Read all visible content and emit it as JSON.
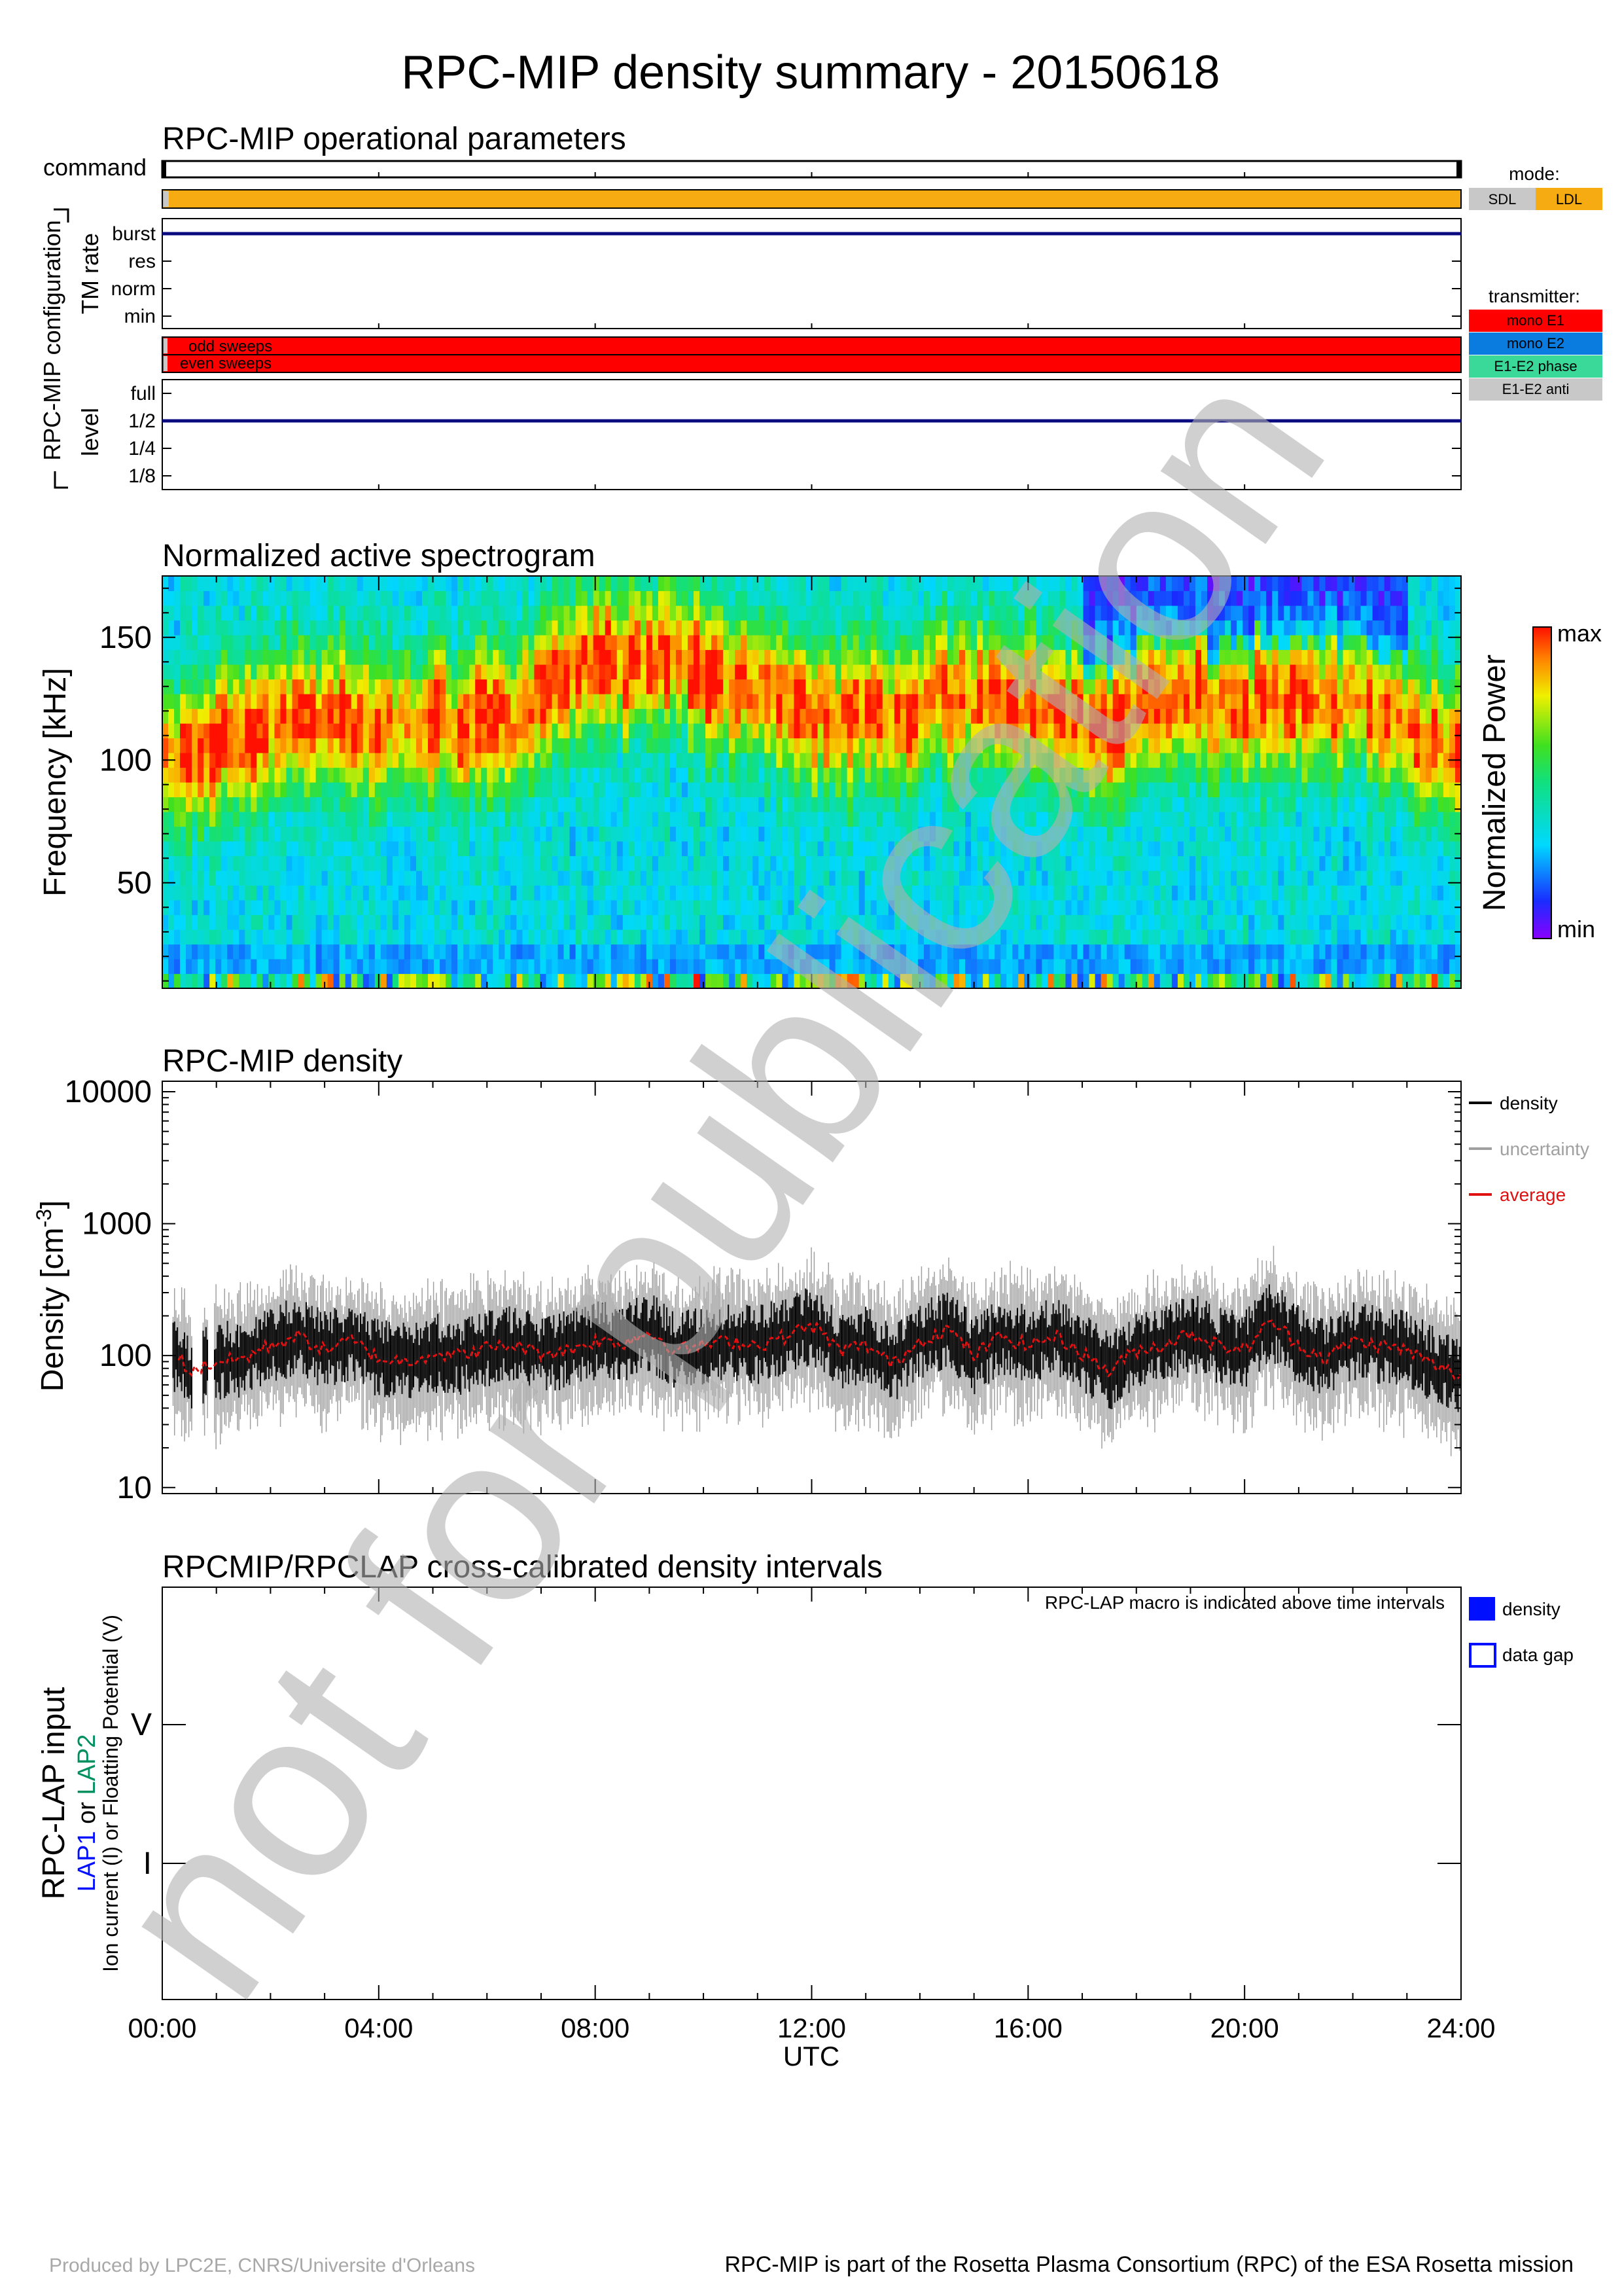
{
  "title": "RPC-MIP density summary - 20150618",
  "watermark": "not for publication",
  "ops": {
    "title": "RPC-MIP operational parameters",
    "command_label": "command",
    "config_label": "RPC-MIP configuration",
    "tm_rate_label": "TM rate",
    "tm_rate_levels": [
      "burst",
      "res",
      "norm",
      "min"
    ],
    "tm_rate_value": "burst",
    "sweeps": [
      "odd sweeps",
      "even sweeps"
    ],
    "level_label": "level",
    "levels": [
      "full",
      "1/2",
      "1/4",
      "1/8"
    ],
    "level_value": "1/2",
    "mode_title": "mode:",
    "mode_value": "LDL",
    "modes": [
      {
        "label": "SDL",
        "color": "#c8c8c8"
      },
      {
        "label": "LDL",
        "color": "#f5ab11"
      }
    ],
    "transmitter_title": "transmitter:",
    "transmitter_value": "mono E1",
    "transmitters": [
      {
        "label": "mono E1",
        "color": "#ff0000"
      },
      {
        "label": "mono E2",
        "color": "#0a7cdf"
      },
      {
        "label": "E1-E2 phase",
        "color": "#3ad99a"
      },
      {
        "label": "E1-E2 anti",
        "color": "#c8c8c8"
      }
    ]
  },
  "x_axis": {
    "label": "UTC",
    "ticks": [
      "00:00",
      "04:00",
      "08:00",
      "12:00",
      "16:00",
      "20:00",
      "24:00"
    ]
  },
  "footer": {
    "left": "Produced by LPC2E, CNRS/Universite d'Orleans",
    "right": "RPC-MIP is part of the Rosetta Plasma Consortium (RPC) of the ESA Rosetta mission"
  },
  "colors": {
    "density": "#000000",
    "uncertainty": "#a0a0a0",
    "average": "#e01010",
    "navy": "#0a0a80",
    "lap_box": "#0010ff"
  },
  "chart_data": [
    {
      "type": "heatmap",
      "title": "Normalized active spectrogram",
      "ylabel": "Frequency [kHz]",
      "xlabel": "UTC",
      "ylim": [
        7,
        175
      ],
      "yticks": [
        50,
        100,
        150
      ],
      "xlim_hours": [
        0,
        24
      ],
      "colorbar": {
        "label": "Normalized Power",
        "max": "max",
        "min": "min"
      },
      "hours": [
        0.5,
        1.5,
        2.5,
        3.5,
        4.5,
        5.5,
        6.5,
        7.5,
        8.5,
        9.5,
        10.5,
        11.5,
        12.5,
        13.5,
        14.5,
        15.5,
        16.5,
        17.5,
        18.5,
        19.5,
        20.5,
        21.5,
        22.5,
        23.5
      ],
      "peak_frequency_khz": [
        100,
        110,
        115,
        115,
        115,
        115,
        115,
        140,
        140,
        140,
        130,
        125,
        115,
        120,
        125,
        125,
        120,
        110,
        130,
        120,
        125,
        125,
        120,
        105
      ]
    },
    {
      "type": "line",
      "title": "RPC-MIP density",
      "ylabel": "Density [cm^-3]",
      "xlabel": "UTC",
      "yscale": "log",
      "ylim": [
        9,
        12000
      ],
      "yticks": [
        10,
        100,
        1000,
        10000
      ],
      "legend": "top-right",
      "series": [
        {
          "name": "average",
          "x_hours": [
            0.3,
            0.5,
            1.0,
            1.5,
            2.0,
            2.5,
            3.0,
            3.5,
            4.0,
            4.5,
            5.0,
            5.5,
            6.0,
            6.5,
            7.0,
            7.5,
            8.0,
            8.5,
            9.0,
            9.5,
            10.0,
            10.5,
            11.0,
            11.5,
            12.0,
            12.5,
            13.0,
            13.5,
            14.0,
            14.5,
            15.0,
            15.5,
            16.0,
            16.5,
            17.0,
            17.5,
            18.0,
            18.5,
            19.0,
            19.5,
            20.0,
            20.5,
            21.0,
            21.5,
            22.0,
            22.5,
            23.0,
            23.5,
            24.0
          ],
          "y": [
            100,
            75,
            90,
            95,
            120,
            140,
            110,
            130,
            95,
            90,
            105,
            100,
            115,
            120,
            105,
            110,
            130,
            125,
            150,
            110,
            120,
            130,
            120,
            140,
            170,
            110,
            120,
            85,
            130,
            160,
            100,
            140,
            120,
            140,
            105,
            75,
            110,
            120,
            150,
            120,
            110,
            180,
            120,
            95,
            130,
            120,
            110,
            85,
            70
          ]
        }
      ],
      "legend_entries": [
        "density",
        "uncertainty",
        "average"
      ]
    },
    {
      "type": "table",
      "title": "RPCMIP/RPCLAP cross-calibrated density intervals",
      "ylabel": "RPC-LAP input",
      "ylabel_parts": [
        "LAP1",
        " or ",
        "LAP2"
      ],
      "ylabel_sub": "Ion current (I) or Floatting Potential (V)",
      "rows": [
        "V",
        "I"
      ],
      "note": "RPC-LAP macro is indicated above time intervals",
      "legend_entries": [
        "density",
        "data gap"
      ],
      "intervals": []
    }
  ]
}
